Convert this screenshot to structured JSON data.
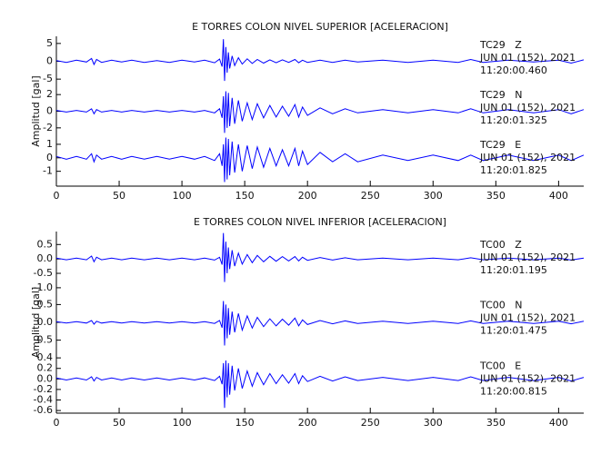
{
  "chart_data": [
    {
      "type": "line",
      "title": "E TORRES COLON NIVEL SUPERIOR [ACELERACION]",
      "ylabel": "Amplitud [gal]",
      "x": [
        0,
        8,
        16,
        24,
        28,
        30,
        32,
        36,
        44,
        52,
        60,
        70,
        80,
        90,
        100,
        110,
        118,
        126,
        130,
        132,
        133,
        134,
        135,
        136,
        137,
        138,
        140,
        142,
        145,
        148,
        152,
        156,
        160,
        165,
        170,
        175,
        180,
        185,
        190,
        193,
        196,
        200,
        210,
        220,
        230,
        240,
        260,
        280,
        300,
        320,
        330,
        340,
        360,
        380,
        400,
        410,
        420
      ],
      "xlim": [
        0,
        420
      ],
      "xticks": [
        0,
        50,
        100,
        150,
        200,
        250,
        300,
        350,
        400
      ],
      "series": [
        {
          "name": "TC29   Z",
          "annotations": [
            "JUN 01 (152), 2021",
            "11:20:00.460"
          ],
          "color": "#0000ff",
          "ylim": [
            -7,
            7
          ],
          "yticks": [
            -5,
            0,
            5
          ],
          "values": [
            0.2,
            -0.3,
            0.3,
            -0.2,
            0.8,
            -0.9,
            0.5,
            -0.3,
            0.3,
            -0.2,
            0.3,
            -0.3,
            0.2,
            -0.3,
            0.3,
            -0.2,
            0.3,
            -0.4,
            0.6,
            -1.5,
            6.2,
            -5.5,
            4.0,
            -3.2,
            2.5,
            -2.0,
            1.5,
            -1.2,
            1.0,
            -0.8,
            0.7,
            -0.6,
            0.5,
            -0.5,
            0.4,
            -0.4,
            0.4,
            -0.3,
            0.5,
            -0.4,
            0.3,
            -0.3,
            0.3,
            -0.3,
            0.3,
            -0.2,
            0.3,
            -0.3,
            0.3,
            -0.3,
            0.5,
            -0.3,
            0.3,
            -0.2,
            0.3,
            -0.5,
            0.4
          ]
        },
        {
          "name": "TC29   N",
          "annotations": [
            "JUN 01 (152), 2021",
            "11:20:01.325"
          ],
          "color": "#0000ff",
          "ylim": [
            -3,
            3
          ],
          "yticks": [
            -2,
            0,
            2
          ],
          "values": [
            0.1,
            -0.1,
            0.1,
            -0.1,
            0.3,
            -0.3,
            0.2,
            -0.1,
            0.1,
            -0.1,
            0.1,
            -0.1,
            0.1,
            -0.1,
            0.1,
            -0.1,
            0.1,
            -0.2,
            0.3,
            -0.8,
            1.8,
            -2.6,
            2.4,
            -2.0,
            2.2,
            -1.8,
            1.6,
            -1.5,
            1.3,
            -1.2,
            1.0,
            -1.0,
            0.9,
            -0.8,
            0.7,
            -0.7,
            0.6,
            -0.6,
            0.8,
            -0.7,
            0.5,
            -0.5,
            0.4,
            -0.3,
            0.3,
            -0.2,
            0.2,
            -0.2,
            0.2,
            -0.2,
            0.3,
            -0.2,
            0.2,
            -0.2,
            0.2,
            -0.3,
            0.2
          ]
        },
        {
          "name": "TC29   E",
          "annotations": [
            "JUN 01 (152), 2021",
            "11:20:01.825"
          ],
          "color": "#0000ff",
          "ylim": [
            -2.1,
            1.6
          ],
          "yticks": [
            -1,
            0,
            1
          ],
          "values": [
            0.1,
            -0.1,
            0.1,
            -0.1,
            0.3,
            -0.3,
            0.2,
            -0.1,
            0.1,
            -0.1,
            0.1,
            -0.1,
            0.1,
            -0.1,
            0.1,
            -0.1,
            0.1,
            -0.2,
            0.3,
            -0.6,
            1.0,
            -1.8,
            1.5,
            -1.6,
            1.4,
            -1.3,
            1.2,
            -1.1,
            1.0,
            -1.0,
            0.9,
            -0.8,
            0.8,
            -0.7,
            0.7,
            -0.6,
            0.6,
            -0.6,
            0.7,
            -0.6,
            0.5,
            -0.5,
            0.4,
            -0.3,
            0.3,
            -0.3,
            0.2,
            -0.2,
            0.2,
            -0.2,
            0.2,
            -0.2,
            0.2,
            -0.2,
            0.2,
            -0.2,
            0.2
          ]
        }
      ]
    },
    {
      "type": "line",
      "title": "E TORRES COLON NIVEL INFERIOR [ACELERACION]",
      "ylabel": "Amplitud [gal]",
      "x": [
        0,
        8,
        16,
        24,
        28,
        30,
        32,
        36,
        44,
        52,
        60,
        70,
        80,
        90,
        100,
        110,
        118,
        126,
        130,
        132,
        133,
        134,
        135,
        136,
        137,
        138,
        140,
        142,
        145,
        148,
        152,
        156,
        160,
        165,
        170,
        175,
        180,
        185,
        190,
        193,
        196,
        200,
        210,
        220,
        230,
        240,
        260,
        280,
        300,
        320,
        330,
        340,
        360,
        380,
        400,
        410,
        420
      ],
      "xlim": [
        0,
        420
      ],
      "xticks": [
        0,
        50,
        100,
        150,
        200,
        250,
        300,
        350,
        400
      ],
      "series": [
        {
          "name": "TC00   Z",
          "annotations": [
            "JUN 01 (152), 2021",
            "11:20:01.195"
          ],
          "color": "#0000ff",
          "ylim": [
            -1.15,
            0.95
          ],
          "yticks": [
            {
              "value": -1,
              "label": "-1.0"
            },
            -0.5,
            {
              "value": 0,
              "label": "0.0"
            },
            0.5
          ],
          "values": [
            0.03,
            -0.03,
            0.03,
            -0.03,
            0.1,
            -0.1,
            0.06,
            -0.03,
            0.03,
            -0.03,
            0.03,
            -0.03,
            0.03,
            -0.03,
            0.03,
            -0.03,
            0.03,
            -0.04,
            0.06,
            -0.2,
            0.9,
            -0.8,
            0.6,
            -0.5,
            0.4,
            -0.35,
            0.3,
            -0.25,
            0.2,
            -0.18,
            0.15,
            -0.13,
            0.12,
            -0.1,
            0.09,
            -0.08,
            0.08,
            -0.07,
            0.08,
            -0.07,
            0.06,
            -0.05,
            0.05,
            -0.04,
            0.04,
            -0.03,
            0.03,
            -0.03,
            0.03,
            -0.03,
            0.04,
            -0.03,
            0.03,
            -0.03,
            0.03,
            -0.04,
            0.03
          ]
        },
        {
          "name": "TC00   N",
          "annotations": [
            "JUN 01 (152), 2021",
            "11:20:01.475"
          ],
          "color": "#0000ff",
          "ylim": [
            -0.85,
            0.85
          ],
          "yticks": [
            -0.5,
            {
              "value": 0,
              "label": "0.0"
            },
            0.5
          ],
          "values": [
            0.02,
            -0.02,
            0.02,
            -0.02,
            0.05,
            -0.05,
            0.03,
            -0.02,
            0.02,
            -0.02,
            0.02,
            -0.02,
            0.02,
            -0.02,
            0.02,
            -0.02,
            0.02,
            -0.03,
            0.05,
            -0.15,
            0.6,
            -0.65,
            0.5,
            -0.45,
            0.4,
            -0.35,
            0.3,
            -0.28,
            0.25,
            -0.22,
            0.18,
            -0.16,
            0.14,
            -0.12,
            0.1,
            -0.1,
            0.09,
            -0.08,
            0.12,
            -0.1,
            0.07,
            -0.06,
            0.05,
            -0.04,
            0.04,
            -0.03,
            0.03,
            -0.03,
            0.03,
            -0.03,
            0.04,
            -0.03,
            0.03,
            -0.03,
            0.03,
            -0.04,
            0.03
          ]
        },
        {
          "name": "TC00   E",
          "annotations": [
            "JUN 01 (152), 2021",
            "11:20:00.815"
          ],
          "color": "#0000ff",
          "ylim": [
            -0.65,
            0.5
          ],
          "yticks": [
            -0.6,
            -0.4,
            -0.2,
            {
              "value": 0,
              "label": "0.0"
            },
            0.2,
            0.4
          ],
          "values": [
            0.02,
            -0.02,
            0.02,
            -0.02,
            0.04,
            -0.04,
            0.03,
            -0.02,
            0.02,
            -0.02,
            0.02,
            -0.02,
            0.02,
            -0.02,
            0.02,
            -0.02,
            0.02,
            -0.03,
            0.05,
            -0.1,
            0.3,
            -0.55,
            0.35,
            -0.35,
            0.3,
            -0.3,
            0.25,
            -0.22,
            0.2,
            -0.18,
            0.15,
            -0.14,
            0.12,
            -0.11,
            0.1,
            -0.09,
            0.08,
            -0.08,
            0.1,
            -0.09,
            0.06,
            -0.05,
            0.05,
            -0.04,
            0.04,
            -0.03,
            0.03,
            -0.03,
            0.03,
            -0.03,
            0.04,
            -0.03,
            0.03,
            -0.03,
            0.03,
            -0.04,
            0.03
          ]
        }
      ]
    }
  ]
}
